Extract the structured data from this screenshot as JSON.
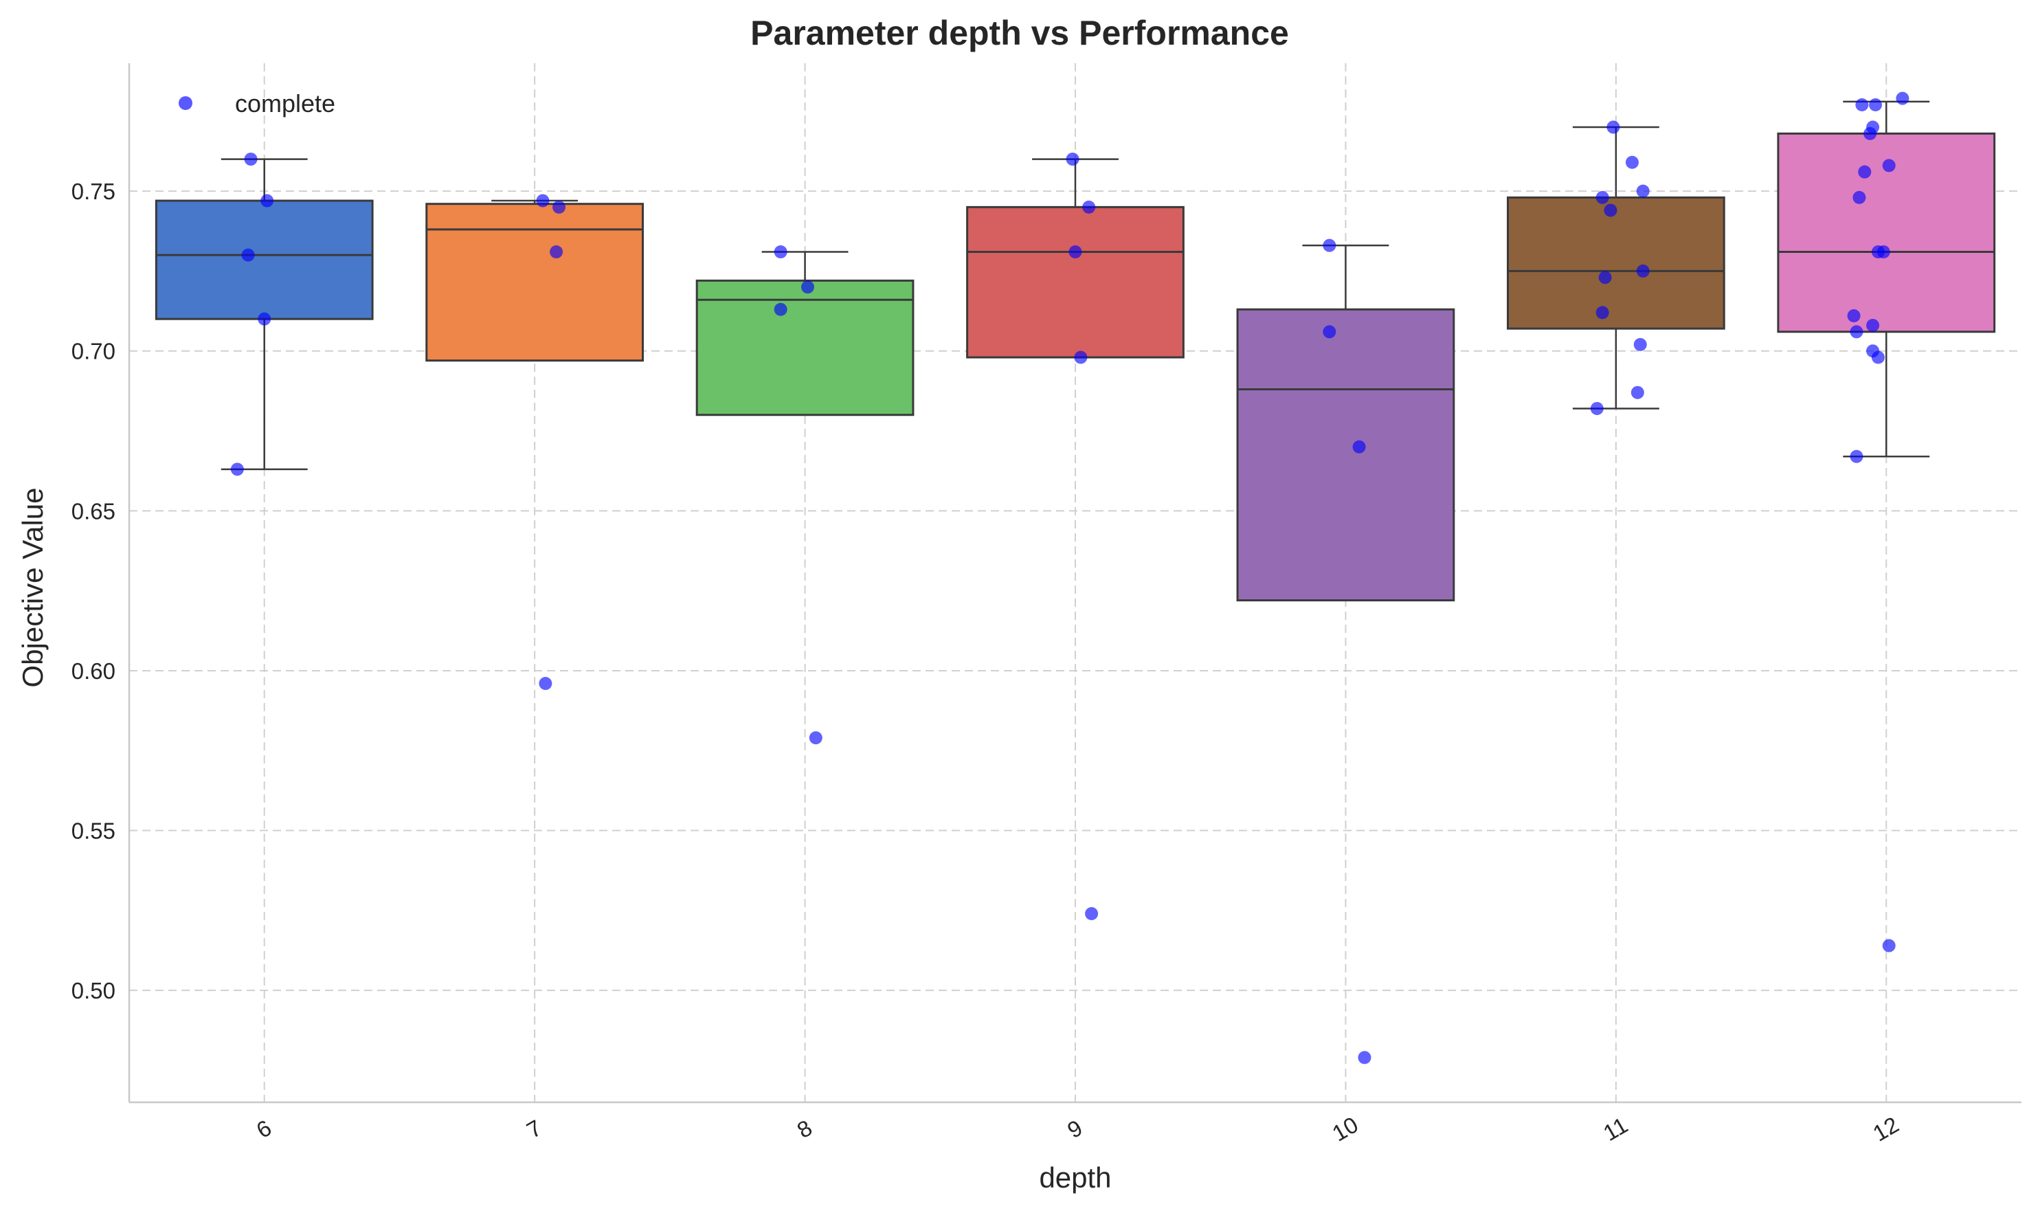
{
  "chart_data": {
    "type": "box",
    "title": "Parameter depth vs Performance",
    "xlabel": "depth",
    "ylabel": "Objective Value",
    "ylim": [
      0.465,
      0.79
    ],
    "yticks": [
      0.5,
      0.55,
      0.6,
      0.65,
      0.7,
      0.75
    ],
    "ytick_labels": [
      "0.50",
      "0.55",
      "0.60",
      "0.65",
      "0.70",
      "0.75"
    ],
    "categories": [
      "6",
      "7",
      "8",
      "9",
      "10",
      "11",
      "12"
    ],
    "grid": true,
    "legend": {
      "position": "top-left",
      "entries": [
        {
          "label": "complete",
          "color": "#0000ff"
        }
      ]
    },
    "boxes": [
      {
        "category": "6",
        "color": "#4878c9",
        "q1": 0.71,
        "median": 0.73,
        "q3": 0.747,
        "whisker_low": 0.663,
        "whisker_high": 0.76
      },
      {
        "category": "7",
        "color": "#ee8549",
        "q1": 0.697,
        "median": 0.738,
        "q3": 0.746,
        "whisker_low": 0.697,
        "whisker_high": 0.747
      },
      {
        "category": "8",
        "color": "#6ac168",
        "q1": 0.68,
        "median": 0.716,
        "q3": 0.722,
        "whisker_low": 0.68,
        "whisker_high": 0.731
      },
      {
        "category": "9",
        "color": "#d65f5f",
        "q1": 0.698,
        "median": 0.731,
        "q3": 0.745,
        "whisker_low": 0.698,
        "whisker_high": 0.76
      },
      {
        "category": "10",
        "color": "#956cb4",
        "q1": 0.622,
        "median": 0.688,
        "q3": 0.713,
        "whisker_low": 0.622,
        "whisker_high": 0.733
      },
      {
        "category": "11",
        "color": "#8c613c",
        "q1": 0.707,
        "median": 0.725,
        "q3": 0.748,
        "whisker_low": 0.682,
        "whisker_high": 0.77
      },
      {
        "category": "12",
        "color": "#dc7ec0",
        "q1": 0.706,
        "median": 0.731,
        "q3": 0.768,
        "whisker_low": 0.667,
        "whisker_high": 0.778
      }
    ],
    "points": [
      {
        "category": "6",
        "jitter": -0.05,
        "value": 0.76
      },
      {
        "category": "6",
        "jitter": 0.01,
        "value": 0.747
      },
      {
        "category": "6",
        "jitter": -0.06,
        "value": 0.73
      },
      {
        "category": "6",
        "jitter": 0.0,
        "value": 0.71
      },
      {
        "category": "6",
        "jitter": -0.1,
        "value": 0.663
      },
      {
        "category": "7",
        "jitter": 0.03,
        "value": 0.747
      },
      {
        "category": "7",
        "jitter": 0.09,
        "value": 0.745
      },
      {
        "category": "7",
        "jitter": 0.08,
        "value": 0.731
      },
      {
        "category": "7",
        "jitter": 0.04,
        "value": 0.596
      },
      {
        "category": "8",
        "jitter": -0.09,
        "value": 0.731
      },
      {
        "category": "8",
        "jitter": 0.01,
        "value": 0.72
      },
      {
        "category": "8",
        "jitter": -0.09,
        "value": 0.713
      },
      {
        "category": "8",
        "jitter": 0.04,
        "value": 0.579
      },
      {
        "category": "9",
        "jitter": -0.01,
        "value": 0.76
      },
      {
        "category": "9",
        "jitter": 0.05,
        "value": 0.745
      },
      {
        "category": "9",
        "jitter": 0.0,
        "value": 0.731
      },
      {
        "category": "9",
        "jitter": 0.02,
        "value": 0.698
      },
      {
        "category": "9",
        "jitter": 0.06,
        "value": 0.524
      },
      {
        "category": "10",
        "jitter": -0.06,
        "value": 0.733
      },
      {
        "category": "10",
        "jitter": -0.06,
        "value": 0.706
      },
      {
        "category": "10",
        "jitter": 0.05,
        "value": 0.67
      },
      {
        "category": "10",
        "jitter": 0.07,
        "value": 0.479
      },
      {
        "category": "11",
        "jitter": -0.01,
        "value": 0.77
      },
      {
        "category": "11",
        "jitter": 0.06,
        "value": 0.759
      },
      {
        "category": "11",
        "jitter": 0.1,
        "value": 0.75
      },
      {
        "category": "11",
        "jitter": -0.05,
        "value": 0.748
      },
      {
        "category": "11",
        "jitter": -0.02,
        "value": 0.744
      },
      {
        "category": "11",
        "jitter": 0.1,
        "value": 0.725
      },
      {
        "category": "11",
        "jitter": -0.04,
        "value": 0.723
      },
      {
        "category": "11",
        "jitter": -0.05,
        "value": 0.712
      },
      {
        "category": "11",
        "jitter": 0.09,
        "value": 0.702
      },
      {
        "category": "11",
        "jitter": 0.08,
        "value": 0.687
      },
      {
        "category": "11",
        "jitter": -0.07,
        "value": 0.682
      },
      {
        "category": "12",
        "jitter": 0.06,
        "value": 0.779
      },
      {
        "category": "12",
        "jitter": -0.09,
        "value": 0.777
      },
      {
        "category": "12",
        "jitter": -0.04,
        "value": 0.777
      },
      {
        "category": "12",
        "jitter": -0.05,
        "value": 0.77
      },
      {
        "category": "12",
        "jitter": -0.06,
        "value": 0.768
      },
      {
        "category": "12",
        "jitter": 0.01,
        "value": 0.758
      },
      {
        "category": "12",
        "jitter": -0.08,
        "value": 0.756
      },
      {
        "category": "12",
        "jitter": -0.1,
        "value": 0.748
      },
      {
        "category": "12",
        "jitter": -0.03,
        "value": 0.731
      },
      {
        "category": "12",
        "jitter": -0.01,
        "value": 0.731
      },
      {
        "category": "12",
        "jitter": -0.12,
        "value": 0.711
      },
      {
        "category": "12",
        "jitter": -0.05,
        "value": 0.708
      },
      {
        "category": "12",
        "jitter": -0.11,
        "value": 0.706
      },
      {
        "category": "12",
        "jitter": -0.05,
        "value": 0.7
      },
      {
        "category": "12",
        "jitter": -0.03,
        "value": 0.698
      },
      {
        "category": "12",
        "jitter": -0.11,
        "value": 0.667
      },
      {
        "category": "12",
        "jitter": 0.01,
        "value": 0.514
      }
    ],
    "point_color": "#0000ff"
  }
}
